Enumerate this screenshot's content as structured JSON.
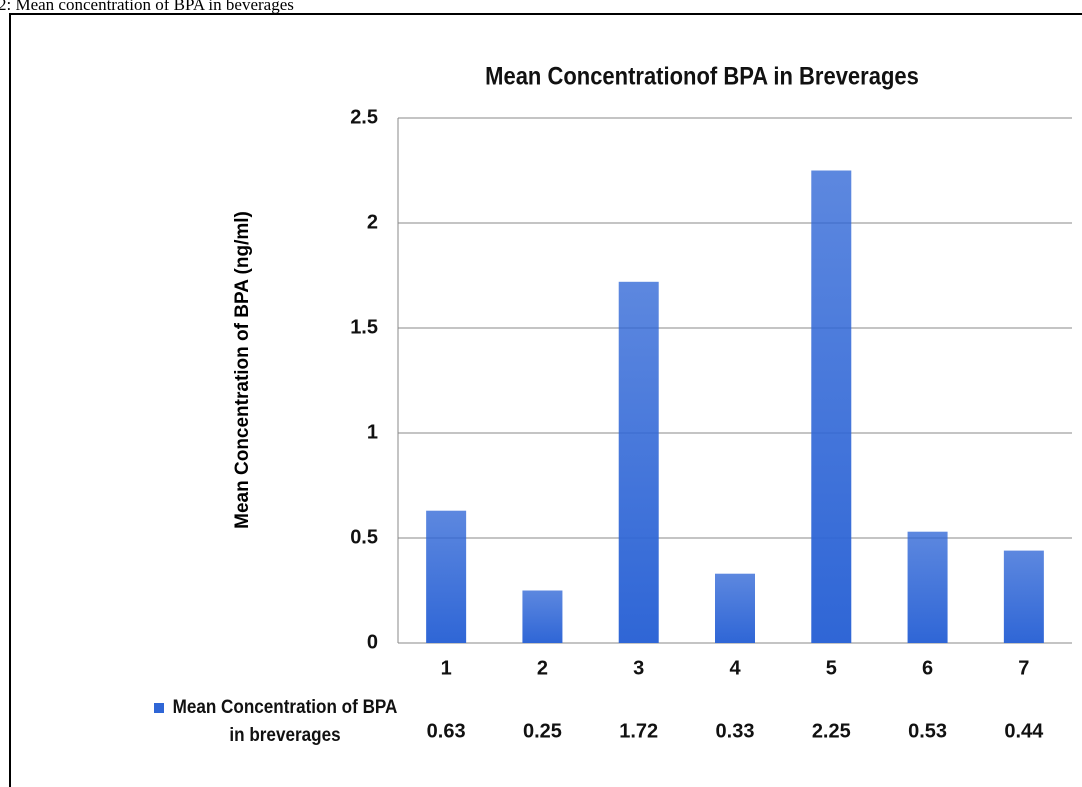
{
  "caption": "2: Mean concentration of BPA in beverages",
  "chart_data": {
    "type": "bar",
    "title": "Mean Concentrationof BPA in Breverages",
    "ylabel": "Mean Concentration of BPA (ng/ml)",
    "categories": [
      "1",
      "2",
      "3",
      "4",
      "5",
      "6",
      "7"
    ],
    "series": [
      {
        "name": "Mean Concentration of BPA in breverages",
        "color": "#2f66d6",
        "values": [
          0.63,
          0.25,
          1.72,
          0.33,
          2.25,
          0.53,
          0.44
        ]
      }
    ],
    "ylim": [
      0,
      2.5
    ],
    "yticks": [
      0,
      0.5,
      1,
      1.5,
      2,
      2.5
    ],
    "grid": true
  }
}
